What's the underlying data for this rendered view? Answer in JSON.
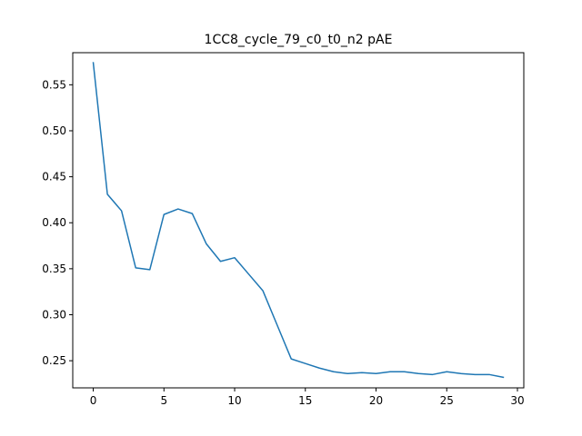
{
  "chart_data": {
    "type": "line",
    "title": "1CC8_cycle_79_c0_t0_n2 pAE",
    "xlabel": "",
    "ylabel": "",
    "xlim": [
      -1.45,
      30.45
    ],
    "ylim": [
      0.2205,
      0.5849
    ],
    "grid": false,
    "x_ticks": [
      0,
      5,
      10,
      15,
      20,
      25,
      30
    ],
    "y_ticks": [
      0.25,
      0.3,
      0.35,
      0.4,
      0.45,
      0.5,
      0.55
    ],
    "x_tick_labels": [
      "0",
      "5",
      "10",
      "15",
      "20",
      "25",
      "30"
    ],
    "y_tick_labels": [
      "0.25",
      "0.30",
      "0.35",
      "0.40",
      "0.45",
      "0.50",
      "0.55"
    ],
    "series": [
      {
        "color": "#1f77b4",
        "x": [
          0,
          1,
          2,
          3,
          4,
          5,
          6,
          7,
          8,
          9,
          10,
          11,
          12,
          13,
          14,
          15,
          16,
          17,
          18,
          19,
          20,
          21,
          22,
          23,
          24,
          25,
          26,
          27,
          28,
          29
        ],
        "values": [
          0.574,
          0.431,
          0.413,
          0.351,
          0.349,
          0.409,
          0.415,
          0.41,
          0.377,
          0.358,
          0.362,
          0.344,
          0.326,
          0.289,
          0.252,
          0.247,
          0.242,
          0.238,
          0.236,
          0.237,
          0.236,
          0.238,
          0.238,
          0.236,
          0.235,
          0.238,
          0.236,
          0.235,
          0.235,
          0.232
        ]
      }
    ]
  }
}
